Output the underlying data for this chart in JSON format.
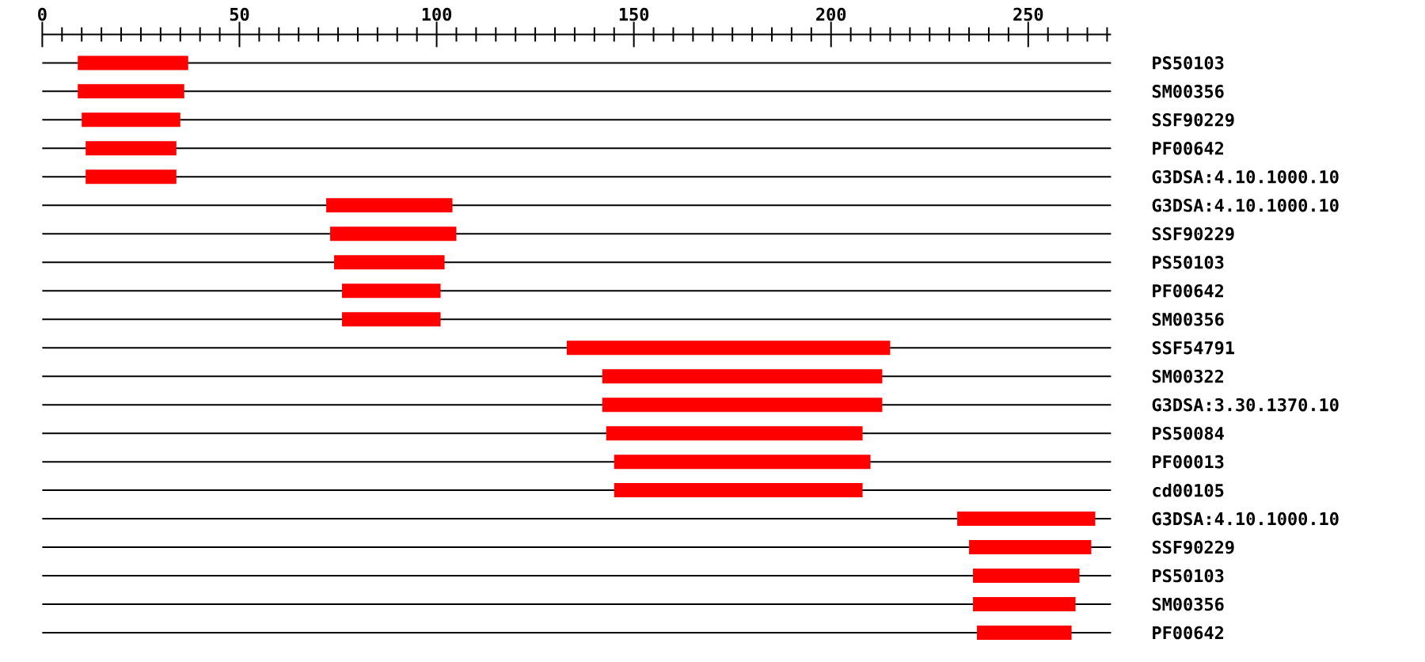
{
  "chart_data": {
    "type": "bar",
    "orientation": "horizontal",
    "categories": [
      "PS50103",
      "SM00356",
      "SSF90229",
      "PF00642",
      "G3DSA:4.10.1000.10",
      "G3DSA:4.10.1000.10",
      "SSF90229",
      "PS50103",
      "PF00642",
      "SM00356",
      "SSF54791",
      "SM00322",
      "G3DSA:3.30.1370.10",
      "PS50084",
      "PF00013",
      "cd00105",
      "G3DSA:4.10.1000.10",
      "SSF90229",
      "PS50103",
      "SM00356",
      "PF00642"
    ],
    "base": [
      9,
      9,
      10,
      11,
      11,
      72,
      73,
      74,
      76,
      76,
      133,
      142,
      142,
      143,
      145,
      145,
      232,
      235,
      236,
      236,
      237
    ],
    "values": [
      28,
      27,
      25,
      23,
      23,
      32,
      32,
      28,
      25,
      25,
      82,
      71,
      71,
      65,
      65,
      63,
      35,
      31,
      27,
      26,
      24
    ],
    "color": "#ff0000",
    "xlim": [
      0,
      271
    ],
    "xticks": [
      0,
      {
        "value": 5,
        "label": null
      },
      {
        "value": 10,
        "label": null
      },
      {
        "value": 15,
        "label": null
      },
      {
        "value": 20,
        "label": null
      },
      {
        "value": 25,
        "label": null
      },
      {
        "value": 30,
        "label": null
      },
      {
        "value": 35,
        "label": null
      },
      {
        "value": 40,
        "label": null
      },
      {
        "value": 45,
        "label": null
      },
      50,
      {
        "value": 55,
        "label": null
      },
      {
        "value": 60,
        "label": null
      },
      {
        "value": 65,
        "label": null
      },
      {
        "value": 70,
        "label": null
      },
      {
        "value": 75,
        "label": null
      },
      {
        "value": 80,
        "label": null
      },
      {
        "value": 85,
        "label": null
      },
      {
        "value": 90,
        "label": null
      },
      {
        "value": 95,
        "label": null
      },
      100,
      {
        "value": 105,
        "label": null
      },
      {
        "value": 110,
        "label": null
      },
      {
        "value": 115,
        "label": null
      },
      {
        "value": 120,
        "label": null
      },
      {
        "value": 125,
        "label": null
      },
      {
        "value": 130,
        "label": null
      },
      {
        "value": 135,
        "label": null
      },
      {
        "value": 140,
        "label": null
      },
      {
        "value": 145,
        "label": null
      },
      150,
      {
        "value": 155,
        "label": null
      },
      {
        "value": 160,
        "label": null
      },
      {
        "value": 165,
        "label": null
      },
      {
        "value": 170,
        "label": null
      },
      {
        "value": 175,
        "label": null
      },
      {
        "value": 180,
        "label": null
      },
      {
        "value": 185,
        "label": null
      },
      {
        "value": 190,
        "label": null
      },
      {
        "value": 195,
        "label": null
      },
      200,
      {
        "value": 205,
        "label": null
      },
      {
        "value": 210,
        "label": null
      },
      {
        "value": 215,
        "label": null
      },
      {
        "value": 220,
        "label": null
      },
      {
        "value": 225,
        "label": null
      },
      {
        "value": 230,
        "label": null
      },
      {
        "value": 235,
        "label": null
      },
      {
        "value": 240,
        "label": null
      },
      {
        "value": 245,
        "label": null
      },
      250,
      {
        "value": 255,
        "label": null
      },
      {
        "value": 260,
        "label": null
      },
      {
        "value": 265,
        "label": null
      },
      {
        "value": 270,
        "label": null
      }
    ],
    "grid": "y"
  }
}
